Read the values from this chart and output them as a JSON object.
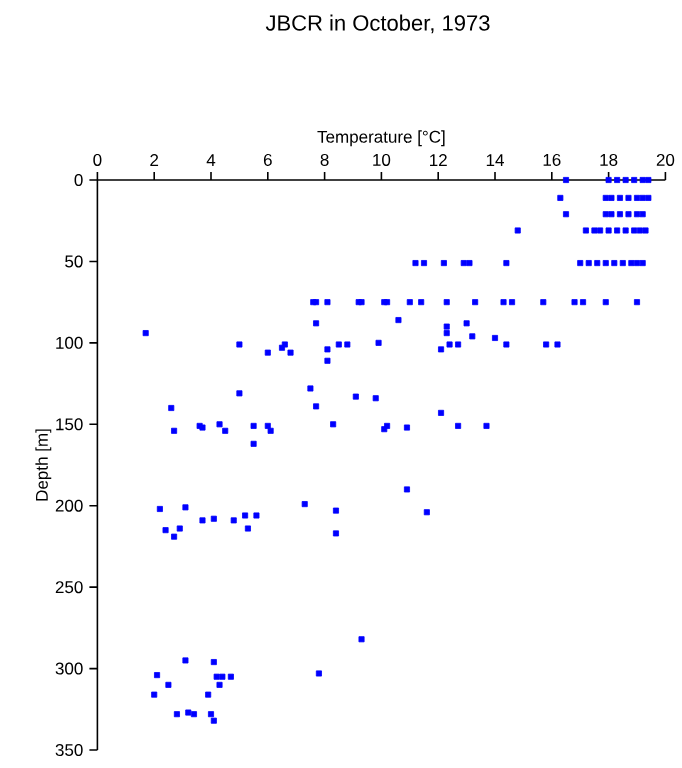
{
  "chart_data": {
    "type": "scatter",
    "title": "JBCR in October, 1973",
    "xlabel": "Temperature [°C]",
    "ylabel": "Depth [m]",
    "xlim": [
      0,
      20
    ],
    "xticks": [
      0,
      2,
      4,
      6,
      8,
      10,
      12,
      14,
      16,
      18,
      20
    ],
    "ylim": [
      350,
      0
    ],
    "yticks": [
      0,
      50,
      100,
      150,
      200,
      250,
      300,
      350
    ],
    "marker": "square",
    "series": [
      {
        "color": "#0000ff",
        "x": [
          16.5,
          18.0,
          18.3,
          18.6,
          18.9,
          19.2,
          19.4,
          16.3,
          17.9,
          18.1,
          18.4,
          18.7,
          19.0,
          19.2,
          19.4,
          16.5,
          17.9,
          18.1,
          18.4,
          18.7,
          19.0,
          19.2,
          14.8,
          17.2,
          17.5,
          17.7,
          18.0,
          18.3,
          18.6,
          18.9,
          19.1,
          19.3,
          11.2,
          11.5,
          12.2,
          12.9,
          13.1,
          14.4,
          17.0,
          17.3,
          17.6,
          17.9,
          18.2,
          18.5,
          18.8,
          19.0,
          19.2,
          7.6,
          7.7,
          8.1,
          9.2,
          9.3,
          10.1,
          10.2,
          11.0,
          11.4,
          12.3,
          13.3,
          14.3,
          14.6,
          15.7,
          16.8,
          17.1,
          17.9,
          19.0,
          10.6,
          12.3,
          13.0,
          12.3,
          13.2,
          14.0,
          9.9,
          12.4,
          12.7,
          12.1,
          14.4,
          15.8,
          16.2,
          1.7,
          7.7,
          5.0,
          6.6,
          6.0,
          6.8,
          6.5,
          8.1,
          8.5,
          8.8,
          8.1,
          7.5,
          5.0,
          9.1,
          9.8,
          2.6,
          7.7,
          12.1,
          2.7,
          3.6,
          3.7,
          4.3,
          4.5,
          5.5,
          6.0,
          6.1,
          8.3,
          10.2,
          10.1,
          10.9,
          12.7,
          13.7,
          5.5,
          2.2,
          3.1,
          2.4,
          2.7,
          2.9,
          3.7,
          4.1,
          4.8,
          5.2,
          5.6,
          5.3,
          7.3,
          8.4,
          8.4,
          10.9,
          11.6,
          9.3,
          7.8,
          3.1,
          4.1,
          2.1,
          2.5,
          2.0,
          4.2,
          4.4,
          4.7,
          4.3,
          3.9,
          2.8,
          3.2,
          3.4,
          4.0,
          4.1
        ],
        "values": [
          0,
          0,
          0,
          0,
          0,
          0,
          0,
          11,
          11,
          11,
          11,
          11,
          11,
          11,
          11,
          21,
          21,
          21,
          21,
          21,
          21,
          21,
          31,
          31,
          31,
          31,
          31,
          31,
          31,
          31,
          31,
          31,
          51,
          51,
          51,
          51,
          51,
          51,
          51,
          51,
          51,
          51,
          51,
          51,
          51,
          51,
          51,
          75,
          75,
          75,
          75,
          75,
          75,
          75,
          75,
          75,
          75,
          75,
          75,
          75,
          75,
          75,
          75,
          75,
          75,
          86,
          90,
          88,
          94,
          96,
          97,
          100,
          101,
          101,
          104,
          101,
          101,
          101,
          94,
          88,
          101,
          101,
          106,
          106,
          103,
          104,
          101,
          101,
          111,
          128,
          131,
          133,
          134,
          140,
          139,
          143,
          154,
          151,
          152,
          150,
          154,
          151,
          151,
          154,
          150,
          151,
          153,
          152,
          151,
          151,
          162,
          202,
          201,
          215,
          219,
          214,
          209,
          208,
          209,
          206,
          206,
          214,
          199,
          203,
          217,
          190,
          204,
          282,
          303,
          295,
          296,
          304,
          310,
          316,
          305,
          305,
          305,
          310,
          316,
          328,
          327,
          328,
          328,
          332
        ]
      }
    ]
  }
}
